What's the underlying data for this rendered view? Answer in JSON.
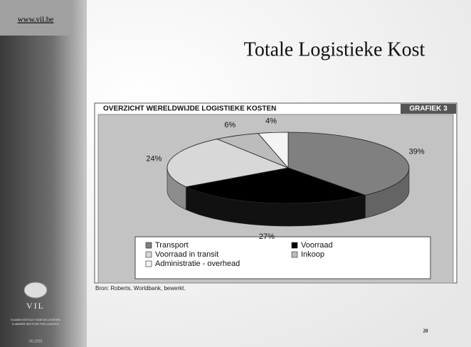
{
  "site": "www.vil.be",
  "heading": "Totale Logistieke Kost",
  "logo": "VIL",
  "institute": [
    "VLAAMS INSTITUUT VOOR DE LOGISTIEK",
    "FLANDERS INSTITUTE FOR LOGISTICS"
  ],
  "footer": "VIL2003",
  "page_number": "20",
  "chart_data": {
    "type": "pie",
    "title": "OVERZICHT WERELDWIJDE LOGISTIEKE KOSTEN",
    "badge": "GRAFIEK 3",
    "categories": [
      "Transport",
      "Voorraad",
      "Voorraad in transit",
      "Inkoop",
      "Administratie - overhead"
    ],
    "values": [
      39,
      27,
      24,
      6,
      4
    ],
    "value_labels": [
      "39%",
      "27%",
      "24%",
      "6%",
      "4%"
    ],
    "colors": [
      "#808080",
      "#000000",
      "#d8d8d8",
      "#bcbcbc",
      "#f4f4f4"
    ],
    "source": "Bron: Roberts, Worldbank, bewerkt."
  }
}
